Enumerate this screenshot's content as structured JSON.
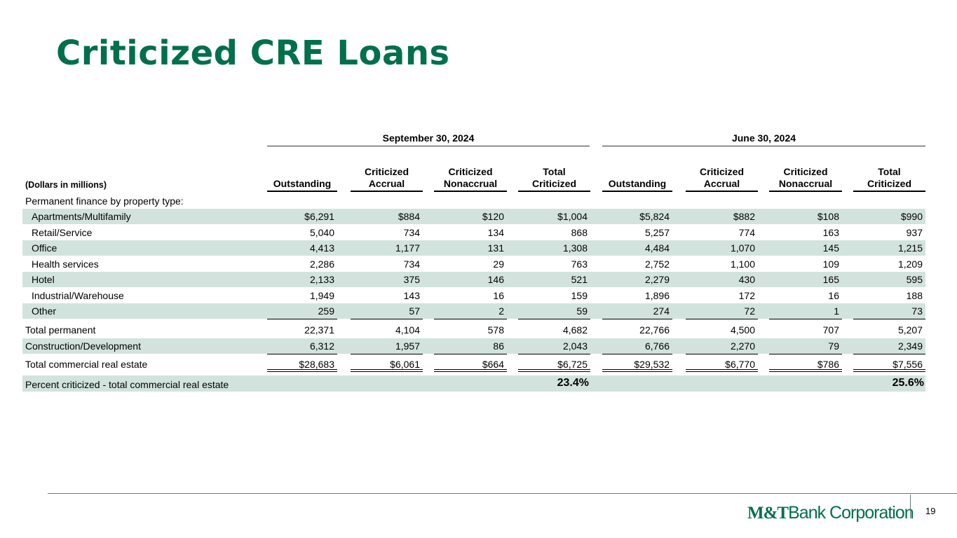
{
  "title": "Criticized CRE Loans",
  "periods": [
    "September 30, 2024",
    "June 30, 2024"
  ],
  "units_label": "(Dollars in millions)",
  "column_headers": [
    [
      "Outstanding"
    ],
    [
      "Criticized",
      "Accrual"
    ],
    [
      "Criticized",
      "Nonaccrual"
    ],
    [
      "Total",
      "Criticized"
    ],
    [
      "Outstanding"
    ],
    [
      "Criticized",
      "Accrual"
    ],
    [
      "Criticized",
      "Nonaccrual"
    ],
    [
      "Total",
      "Criticized"
    ]
  ],
  "section_label": "Permanent finance by property type:",
  "rows": [
    {
      "label": "Apartments/Multifamily",
      "values": [
        "$6,291",
        "$884",
        "$120",
        "$1,004",
        "$5,824",
        "$882",
        "$108",
        "$990"
      ]
    },
    {
      "label": "Retail/Service",
      "values": [
        "5,040",
        "734",
        "134",
        "868",
        "5,257",
        "774",
        "163",
        "937"
      ]
    },
    {
      "label": "Office",
      "values": [
        "4,413",
        "1,177",
        "131",
        "1,308",
        "4,484",
        "1,070",
        "145",
        "1,215"
      ]
    },
    {
      "label": "Health services",
      "values": [
        "2,286",
        "734",
        "29",
        "763",
        "2,752",
        "1,100",
        "109",
        "1,209"
      ]
    },
    {
      "label": "Hotel",
      "values": [
        "2,133",
        "375",
        "146",
        "521",
        "2,279",
        "430",
        "165",
        "595"
      ]
    },
    {
      "label": "Industrial/Warehouse",
      "values": [
        "1,949",
        "143",
        "16",
        "159",
        "1,896",
        "172",
        "16",
        "188"
      ]
    },
    {
      "label": "Other",
      "values": [
        "259",
        "57",
        "2",
        "59",
        "274",
        "72",
        "1",
        "73"
      ]
    },
    {
      "label": "Total permanent",
      "values": [
        "22,371",
        "4,104",
        "578",
        "4,682",
        "22,766",
        "4,500",
        "707",
        "5,207"
      ]
    },
    {
      "label": "Construction/Development",
      "values": [
        "6,312",
        "1,957",
        "86",
        "2,043",
        "6,766",
        "2,270",
        "79",
        "2,349"
      ]
    },
    {
      "label": "Total commercial real estate",
      "values": [
        "$28,683",
        "$6,061",
        "$664",
        "$6,725",
        "$29,532",
        "$6,770",
        "$786",
        "$7,556"
      ]
    }
  ],
  "percent_row": {
    "label": "Percent criticized - total commercial real estate",
    "values": [
      "23.4%",
      "25.6%"
    ]
  },
  "footer": {
    "logo_prefix": "M&T",
    "logo_rest": "Bank Corporation",
    "page_number": "19"
  },
  "colors": {
    "brand_green": "#00704a",
    "row_shade": "#d2e3dd"
  }
}
